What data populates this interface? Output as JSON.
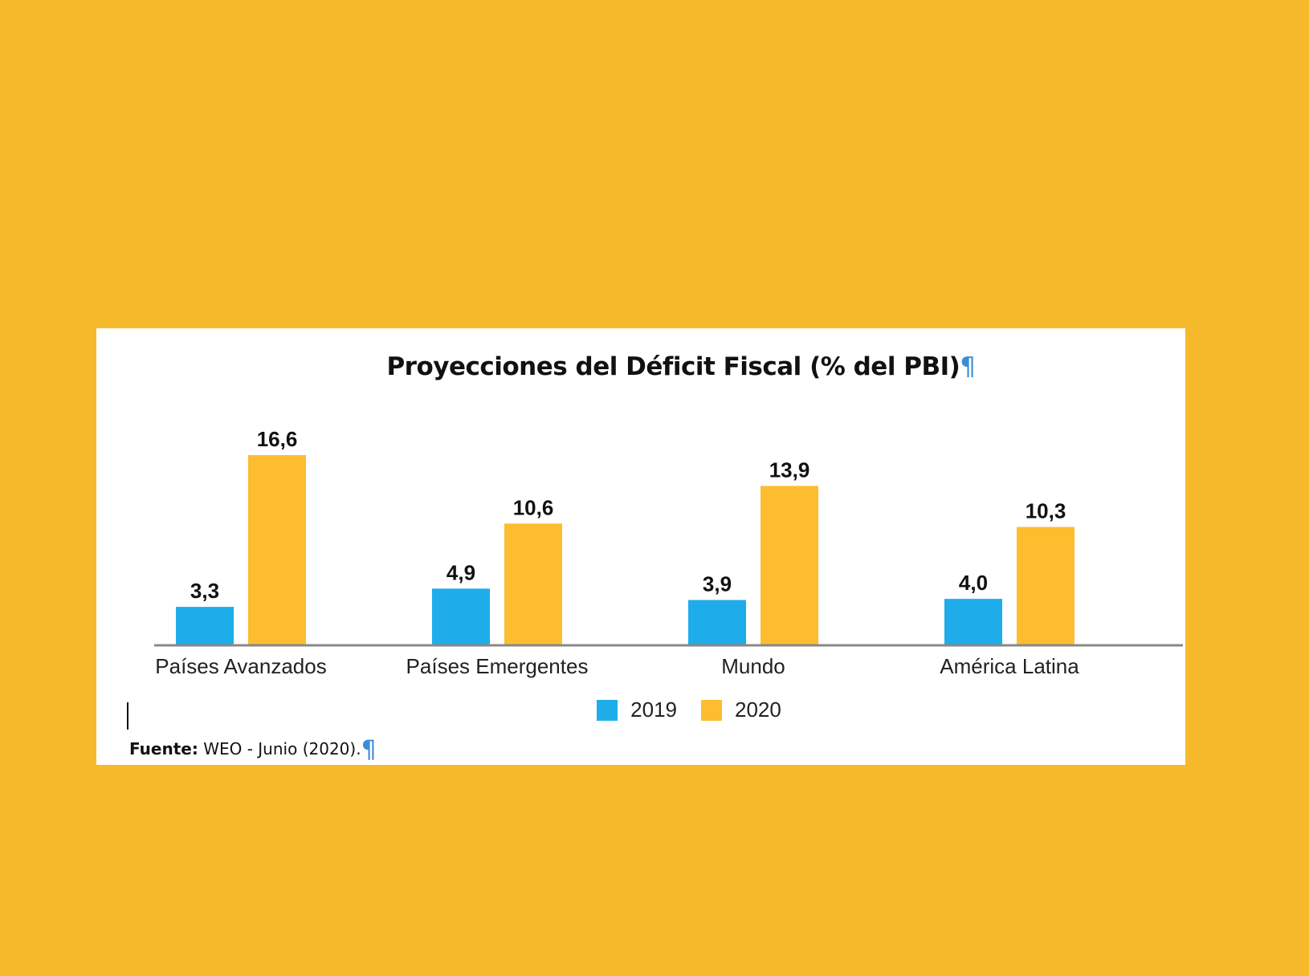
{
  "chart_data": {
    "type": "bar",
    "title": "Proyecciones del Déficit Fiscal (% del PBI)",
    "categories": [
      "Países Avanzados",
      "Países Emergentes",
      "Mundo",
      "América Latina"
    ],
    "series": [
      {
        "name": "2019",
        "values": [
          3.3,
          4.9,
          3.9,
          4.0
        ],
        "labels": [
          "3,3",
          "4,9",
          "3,9",
          "4,0"
        ],
        "color": "#1EADEA"
      },
      {
        "name": "2020",
        "values": [
          16.6,
          10.6,
          13.9,
          10.3
        ],
        "labels": [
          "16,6",
          "10,6",
          "13,9",
          "10,3"
        ],
        "color": "#FDBD2F"
      }
    ],
    "xlabel": "",
    "ylabel": "",
    "ylim": [
      0,
      16.6
    ],
    "grid": false,
    "legend": "bottom-center"
  },
  "title_mark": "¶",
  "source": {
    "prefix": "Fuente:",
    "text": " WEO - Junio (2020).",
    "mark": "¶"
  },
  "colors": {
    "background": "#F7B92C",
    "series_2019": "#1EADEA",
    "series_2020": "#FDBD2F",
    "axis": "#888888"
  }
}
